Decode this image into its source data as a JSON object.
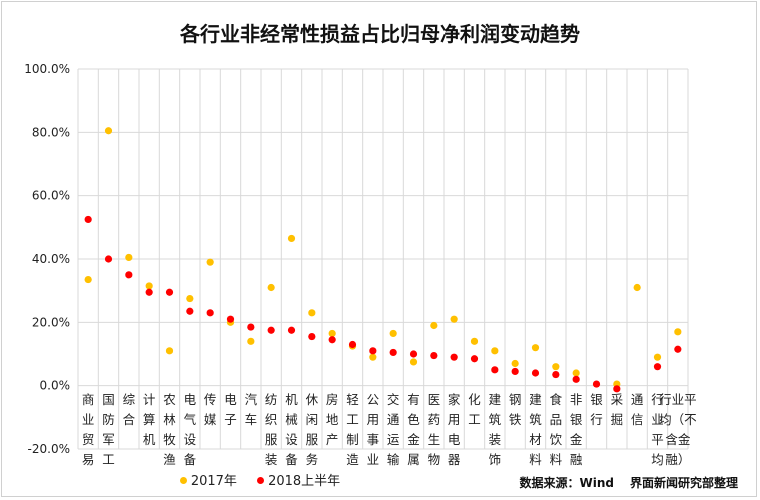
{
  "chart_data": {
    "type": "scatter",
    "title": "各行业非经常性损益占比归母净利润变动趋势",
    "ylim": [
      -20,
      100
    ],
    "yticks": [
      -20,
      0,
      20,
      40,
      60,
      80,
      100
    ],
    "ytick_labels": [
      "-20.0%",
      "0.0%",
      "20.0%",
      "40.0%",
      "60.0%",
      "80.0%",
      "100.0%"
    ],
    "categories": [
      [
        "商",
        "业",
        "贸",
        "易"
      ],
      [
        "国",
        "防",
        "军",
        "工"
      ],
      [
        "综",
        "合"
      ],
      [
        "计",
        "算",
        "机"
      ],
      [
        "农",
        "林",
        "牧",
        "渔"
      ],
      [
        "电",
        "气",
        "设",
        "备"
      ],
      [
        "传",
        "媒"
      ],
      [
        "电",
        "子"
      ],
      [
        "汽",
        "车"
      ],
      [
        "纺",
        "织",
        "服",
        "装"
      ],
      [
        "机",
        "械",
        "设",
        "备"
      ],
      [
        "休",
        "闲",
        "服",
        "务"
      ],
      [
        "房",
        "地",
        "产"
      ],
      [
        "轻",
        "工",
        "制",
        "造"
      ],
      [
        "公",
        "用",
        "事",
        "业"
      ],
      [
        "交",
        "通",
        "运",
        "输"
      ],
      [
        "有",
        "色",
        "金",
        "属"
      ],
      [
        "医",
        "药",
        "生",
        "物"
      ],
      [
        "家",
        "用",
        "电",
        "器"
      ],
      [
        "化",
        "工"
      ],
      [
        "建",
        "筑",
        "装",
        "饰"
      ],
      [
        "钢",
        "铁"
      ],
      [
        "建",
        "筑",
        "材",
        "料"
      ],
      [
        "食",
        "品",
        "饮",
        "料"
      ],
      [
        "非",
        "银",
        "金",
        "融"
      ],
      [
        "银",
        "行"
      ],
      [
        "采",
        "掘"
      ],
      [
        "通",
        "信"
      ],
      [
        "行",
        "业",
        "平",
        "均"
      ],
      [
        "行业平",
        "均（不",
        "含金",
        "融）"
      ]
    ],
    "series": [
      {
        "name": "2017年",
        "color": "#FFC000",
        "values": [
          33.5,
          80.5,
          40.5,
          31.5,
          11.0,
          27.5,
          39.0,
          20.0,
          14.0,
          31.0,
          46.5,
          23.0,
          16.5,
          12.5,
          9.0,
          16.5,
          7.5,
          19.0,
          21.0,
          14.0,
          11.0,
          7.0,
          12.0,
          6.0,
          4.0,
          null,
          0.5,
          31.0,
          9.0,
          17.0
        ]
      },
      {
        "name": "2018上半年",
        "color": "#FF0000",
        "values": [
          52.5,
          40.0,
          35.0,
          29.5,
          29.5,
          23.5,
          23.0,
          21.0,
          18.5,
          17.5,
          17.5,
          15.5,
          14.5,
          13.0,
          11.0,
          10.5,
          10.0,
          9.5,
          9.0,
          8.5,
          5.0,
          4.5,
          4.0,
          3.5,
          2.0,
          0.5,
          -1.0,
          null,
          6.0,
          11.5
        ]
      }
    ],
    "legend": "bottom",
    "grid": true
  },
  "source_text": "数据来源：Wind",
  "source_org": "界面新闻研究部整理"
}
